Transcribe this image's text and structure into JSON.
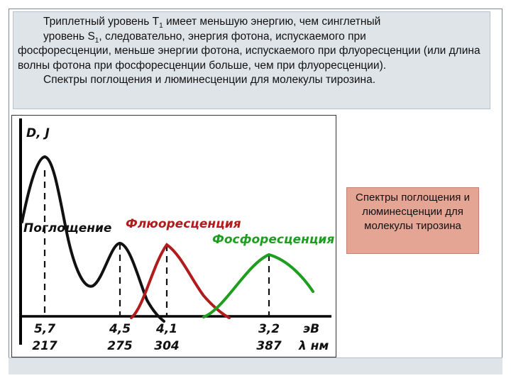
{
  "slide": {
    "paragraph1_part1": "Триплетный уровень T",
    "paragraph1_sub1": "1",
    "paragraph1_part2": " имеет меньшую энергию, чем синглетный",
    "paragraph1_line2_part1": "уровень S",
    "paragraph1_sub2": "1",
    "paragraph1_line2_part2": ",  следовательно, энергия фотона, испускаемого при",
    "paragraph1_rest": "фосфоресценции, меньше энергии фотона, испускаемого при флуоресценции (или длина волны фотона при фосфоресценции больше, чем при флуоресценции).",
    "paragraph2": "Спектры поглощения и люминесценции для молекулы тирозина.",
    "caption": "Спектры поглощения и люминесценции для молекулы тирозина"
  },
  "chart_data": {
    "type": "line",
    "ylabel": "D, J",
    "x_unit_energy": "эВ",
    "x_unit_wavelength": "λ нм",
    "x_ticks": [
      {
        "energy": "5,7",
        "wavelength": "217"
      },
      {
        "energy": "4,5",
        "wavelength": "275"
      },
      {
        "energy": "4,1",
        "wavelength": "304"
      },
      {
        "energy": "3,2",
        "wavelength": "387"
      }
    ],
    "series": [
      {
        "name": "Поглощение",
        "color": "#111111",
        "peak_wavelength": 217,
        "second_peak_wavelength": 275
      },
      {
        "name": "Флюоресценция",
        "color": "#b01c1c",
        "peak_wavelength": 304
      },
      {
        "name": "Фосфоресценция",
        "color": "#1e9e1e",
        "peak_wavelength": 387
      }
    ],
    "grid": false
  },
  "colors": {
    "text_panel_bg": "#dfe4e9",
    "caption_bg": "#e5a595",
    "absorption": "#111111",
    "fluorescence": "#b01c1c",
    "phosphorescence": "#1e9e1e"
  }
}
